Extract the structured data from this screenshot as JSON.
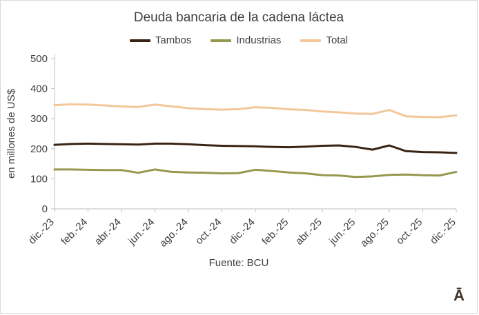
{
  "title": "Deuda bancaria de la cadena láctea",
  "source": "Fuente: BCU",
  "logo": "Ā",
  "chart_data": {
    "type": "line",
    "title": "Deuda bancaria de la cadena láctea",
    "xlabel": "",
    "ylabel": "en millones de US$",
    "ylim": [
      0,
      500
    ],
    "y_ticks": [
      0,
      100,
      200,
      300,
      400,
      500
    ],
    "grid": false,
    "legend_position": "top",
    "tick_every": 2,
    "x": [
      "dic.-23",
      "ene.-24",
      "feb.-24",
      "mar.-24",
      "abr.-24",
      "may.-24",
      "jun.-24",
      "jul.-24",
      "ago.-24",
      "sep.-24",
      "oct.-24",
      "nov.-24",
      "dic.-24",
      "ene.-25",
      "feb.-25",
      "mar.-25",
      "abr.-25",
      "may.-25",
      "jun.-25",
      "jul.-25",
      "ago.-25",
      "sep.-25",
      "oct.-25",
      "nov.-25",
      "dic.-25"
    ],
    "x_tick_labels": [
      "dic.-23",
      "feb.-24",
      "abr.-24",
      "jun.-24",
      "ago.-24",
      "oct.-24",
      "dic.-24",
      "feb.-25",
      "abr.-25",
      "jun.-25",
      "ago.-25",
      "oct.-25",
      "dic.-25"
    ],
    "series": [
      {
        "name": "Tambos",
        "color": "#3A2313",
        "values": [
          213,
          216,
          217,
          216,
          215,
          214,
          217,
          217,
          215,
          212,
          210,
          209,
          208,
          206,
          205,
          207,
          210,
          211,
          206,
          197,
          211,
          192,
          189,
          188,
          186
        ]
      },
      {
        "name": "Industrias",
        "color": "#96984F",
        "values": [
          131,
          131,
          130,
          129,
          129,
          120,
          131,
          123,
          121,
          120,
          118,
          119,
          130,
          126,
          121,
          118,
          112,
          111,
          106,
          108,
          113,
          114,
          112,
          111,
          123
        ]
      },
      {
        "name": "Total",
        "color": "#F4C79B",
        "values": [
          345,
          348,
          347,
          344,
          341,
          339,
          347,
          341,
          335,
          332,
          330,
          332,
          338,
          336,
          331,
          329,
          324,
          321,
          317,
          316,
          329,
          308,
          306,
          305,
          311
        ]
      }
    ]
  }
}
